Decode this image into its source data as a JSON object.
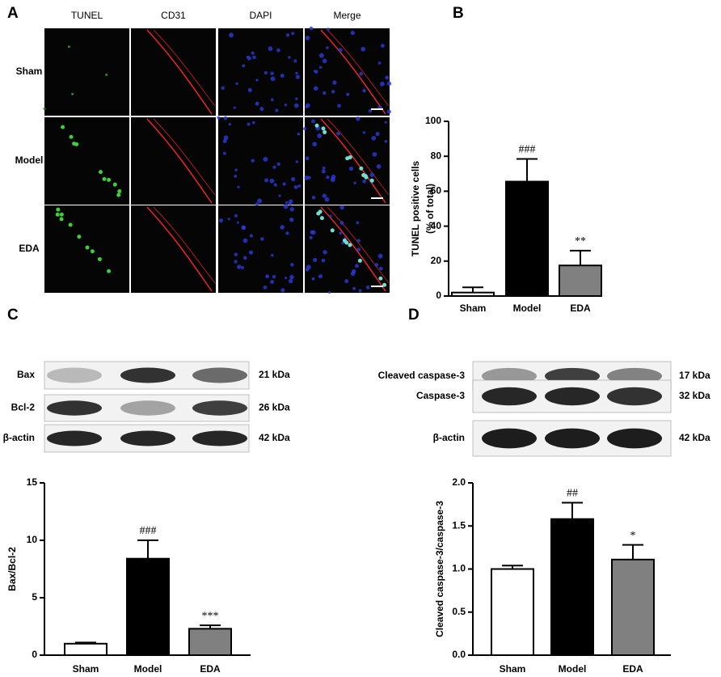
{
  "panel_labels": [
    "A",
    "B",
    "C",
    "D"
  ],
  "microscopy": {
    "columns": [
      "TUNEL",
      "CD31",
      "DAPI",
      "Merge"
    ],
    "rows": [
      "Sham",
      "Model",
      "EDA"
    ]
  },
  "blots": [
    {
      "rows": [
        {
          "label": "Bax",
          "size": "21 kDa"
        },
        {
          "label": "Bcl-2",
          "size": "26 kDa"
        },
        {
          "label": "β-actin",
          "size": "42 kDa"
        }
      ]
    },
    {
      "rows": [
        {
          "label": "Cleaved caspase-3",
          "size": "17 kDa"
        },
        {
          "label": "Caspase-3",
          "size": "32 kDa"
        },
        {
          "label": "β-actin",
          "size": "42 kDa"
        }
      ]
    }
  ],
  "chart_data": [
    {
      "type": "bar",
      "ylabel": [
        "TUNEL positive cells",
        "(% of total)"
      ],
      "categories": [
        "Sham",
        "Model",
        "EDA"
      ],
      "values": [
        2,
        65.5,
        17.5
      ],
      "errors": [
        3,
        13,
        8.5
      ],
      "annotations": [
        null,
        "###",
        "**"
      ],
      "colors": [
        "#ffffff",
        "#000000",
        "#808080"
      ],
      "ylim": [
        0,
        100
      ],
      "yticks": [
        0,
        20,
        40,
        60,
        80,
        100
      ]
    },
    {
      "type": "bar",
      "ylabel": [
        "Bax/Bcl-2"
      ],
      "categories": [
        "Sham",
        "Model",
        "EDA"
      ],
      "values": [
        1,
        8.4,
        2.3
      ],
      "errors": [
        0.1,
        1.6,
        0.3
      ],
      "annotations": [
        null,
        "###",
        "***"
      ],
      "colors": [
        "#ffffff",
        "#000000",
        "#808080"
      ],
      "ylim": [
        0,
        15
      ],
      "yticks": [
        0,
        5,
        10,
        15
      ]
    },
    {
      "type": "bar",
      "ylabel": [
        "Cleaved caspase-3/caspase-3"
      ],
      "categories": [
        "Sham",
        "Model",
        "EDA"
      ],
      "values": [
        1.0,
        1.58,
        1.11
      ],
      "errors": [
        0.04,
        0.19,
        0.17
      ],
      "annotations": [
        null,
        "##",
        "*"
      ],
      "colors": [
        "#ffffff",
        "#000000",
        "#808080"
      ],
      "ylim": [
        0,
        2
      ],
      "yticks": [
        {
          "value": 0,
          "label": "0.0"
        },
        0.5,
        {
          "value": 1,
          "label": "1.0"
        },
        1.5,
        {
          "value": 2,
          "label": "2.0"
        }
      ]
    }
  ]
}
